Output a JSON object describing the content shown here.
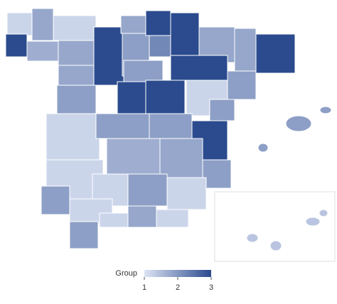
{
  "map": {
    "colors": [
      "#dde4f4",
      "#2b4b8e"
    ],
    "regions": [
      1.2,
      3,
      1.8,
      1.7,
      1.2,
      1.8,
      3,
      1.8,
      1.9,
      3,
      3,
      2.2,
      1.8,
      1.8,
      3,
      3,
      1.8,
      1.9,
      1.9,
      3,
      3,
      1.2,
      1.9,
      1.9,
      1.2,
      1.9,
      1.9,
      3,
      1.7,
      1.8,
      1.9,
      1.2,
      1.2,
      1.9,
      1.2,
      1.9,
      1.2,
      1.2,
      1.8,
      1.2,
      1.9,
      1.9,
      1.9,
      1.9,
      1.4,
      1.4,
      1.4,
      1.4
    ],
    "legend": {
      "title": "Group",
      "range": [
        1,
        3
      ],
      "ticks": [
        1,
        2,
        3
      ]
    }
  }
}
